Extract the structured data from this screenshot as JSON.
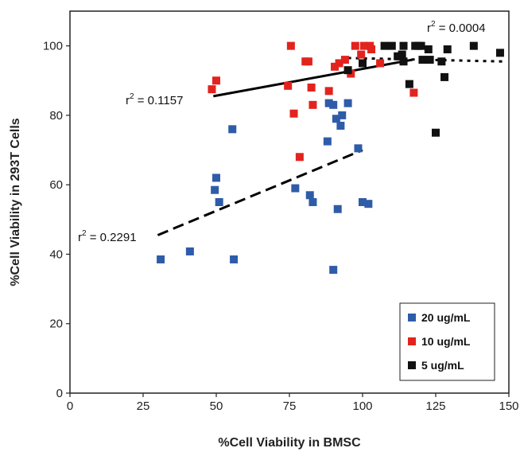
{
  "chart_data": {
    "type": "scatter",
    "xlabel": "%Cell Viability in BMSC",
    "ylabel": "%Cell Viability in 293T Cells",
    "xlim": [
      0,
      150
    ],
    "ylim": [
      0,
      110
    ],
    "xticks": [
      "0",
      "25",
      "50",
      "75",
      "100",
      "125",
      "150"
    ],
    "yticks": [
      "0",
      "20",
      "40",
      "60",
      "80",
      "100"
    ],
    "xtick_values": [
      0,
      25,
      50,
      75,
      100,
      125,
      150
    ],
    "ytick_values": [
      0,
      20,
      40,
      60,
      80,
      100
    ],
    "grid": false,
    "legend_position": "bottom-right",
    "series": [
      {
        "name": "20 ug/mL",
        "color": "#2e5ca8",
        "points": [
          [
            31,
            38.5
          ],
          [
            41,
            40.8
          ],
          [
            49.5,
            58.5
          ],
          [
            50,
            62
          ],
          [
            51,
            55
          ],
          [
            55.5,
            76
          ],
          [
            56,
            38.5
          ],
          [
            77,
            59
          ],
          [
            82,
            57
          ],
          [
            83,
            55
          ],
          [
            88,
            72.5
          ],
          [
            88.5,
            83.5
          ],
          [
            90,
            83
          ],
          [
            90,
            35.5
          ],
          [
            91,
            79
          ],
          [
            91.5,
            53
          ],
          [
            92.5,
            77
          ],
          [
            93,
            80
          ],
          [
            95,
            83.5
          ],
          [
            98.5,
            70.5
          ],
          [
            100,
            55
          ],
          [
            102,
            54.5
          ]
        ],
        "trend": {
          "x": [
            30,
            100
          ],
          "y": [
            45.5,
            70
          ],
          "dash": "dashed",
          "r2": "0.2291"
        }
      },
      {
        "name": "10 ug/mL",
        "color": "#e3231e",
        "points": [
          [
            48.5,
            87.5
          ],
          [
            50,
            90
          ],
          [
            74.5,
            88.5
          ],
          [
            75.5,
            100
          ],
          [
            76.5,
            80.5
          ],
          [
            78.5,
            68
          ],
          [
            80.5,
            95.5
          ],
          [
            81.5,
            95.5
          ],
          [
            82.5,
            88
          ],
          [
            83,
            83
          ],
          [
            88.5,
            87
          ],
          [
            90.5,
            94
          ],
          [
            92,
            95
          ],
          [
            94,
            96
          ],
          [
            96,
            92
          ],
          [
            97.5,
            100
          ],
          [
            99.5,
            97.5
          ],
          [
            100.5,
            100
          ],
          [
            102.5,
            100
          ],
          [
            103,
            99
          ],
          [
            106,
            95
          ],
          [
            117.5,
            86.5
          ]
        ],
        "trend": {
          "x": [
            49,
            117
          ],
          "y": [
            85.5,
            96
          ],
          "dash": "solid",
          "r2": "0.1157"
        }
      },
      {
        "name": "5 ug/mL",
        "color": "#111111",
        "points": [
          [
            95,
            93
          ],
          [
            100,
            95
          ],
          [
            107.5,
            100
          ],
          [
            110,
            100
          ],
          [
            112,
            97
          ],
          [
            113.5,
            97.5
          ],
          [
            114,
            95.5
          ],
          [
            114,
            100
          ],
          [
            116,
            89
          ],
          [
            118,
            100
          ],
          [
            119,
            100
          ],
          [
            120,
            100
          ],
          [
            120.5,
            96
          ],
          [
            122.5,
            99
          ],
          [
            123,
            96
          ],
          [
            125,
            75
          ],
          [
            127,
            95.5
          ],
          [
            128,
            91
          ],
          [
            129,
            99
          ],
          [
            138,
            100
          ],
          [
            147,
            98
          ]
        ],
        "trend": {
          "x": [
            95,
            148
          ],
          "y": [
            96.5,
            95.5
          ],
          "dash": "dotted",
          "r2": "0.0004"
        }
      }
    ],
    "annotations": [
      {
        "text_prefix": "r",
        "text_sup": "2",
        "text_suffix": " = 0.0004"
      },
      {
        "text_prefix": "r",
        "text_sup": "2",
        "text_suffix": " = 0.1157"
      },
      {
        "text_prefix": "r",
        "text_sup": "2",
        "text_suffix": " = 0.2291"
      }
    ]
  }
}
